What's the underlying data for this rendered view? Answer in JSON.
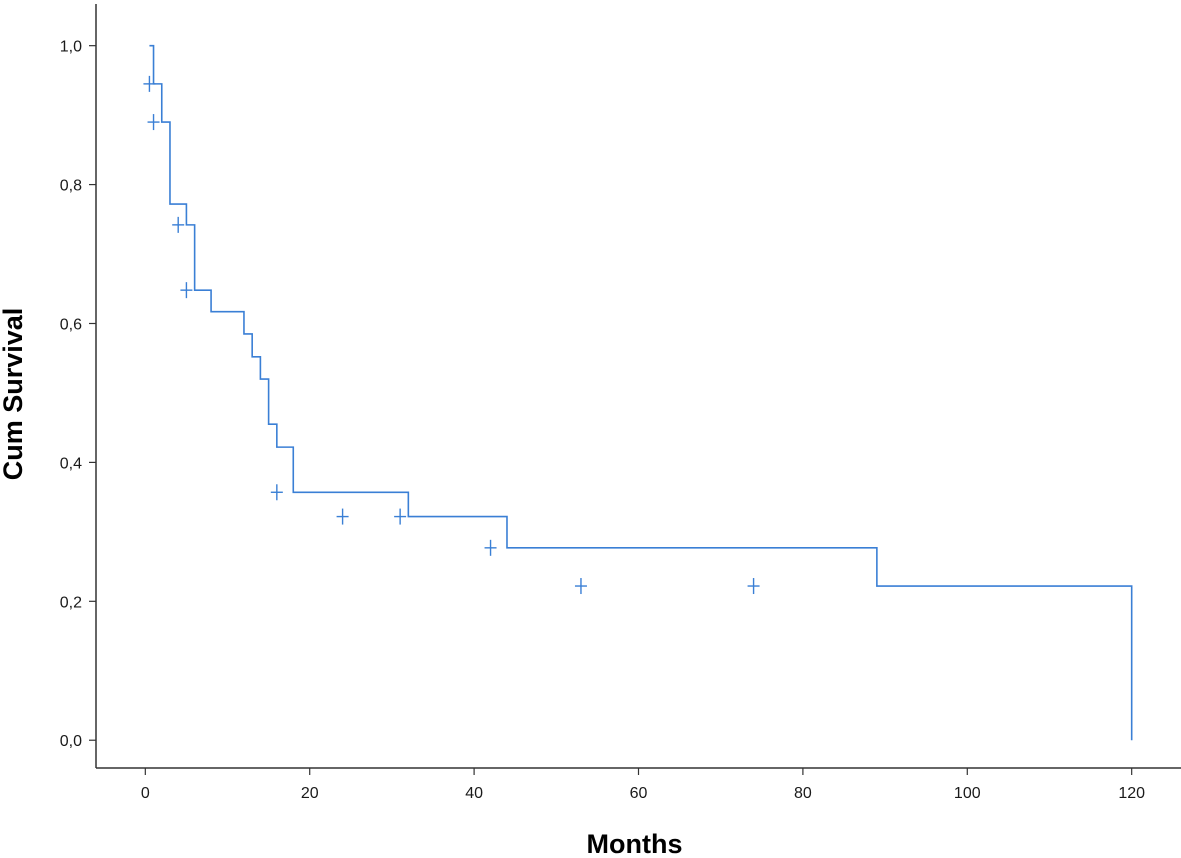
{
  "chart_data": {
    "type": "line",
    "xlabel": "Months",
    "ylabel": "Cum Survival",
    "xlim": [
      -6,
      126
    ],
    "ylim": [
      -0.04,
      1.06
    ],
    "x_ticks": [
      0,
      20,
      40,
      60,
      80,
      100,
      120
    ],
    "y_ticks": [
      0.0,
      0.2,
      0.4,
      0.6,
      0.8,
      1.0
    ],
    "x_tick_labels": [
      "0",
      "20",
      "40",
      "60",
      "80",
      "100",
      "120"
    ],
    "y_tick_labels": [
      "0,0",
      "0,2",
      "0,4",
      "0,6",
      "0,8",
      "1,0"
    ],
    "grid": false,
    "series_color": "#3a7fd5",
    "series": [
      {
        "x": [
          0.5,
          1,
          2,
          3,
          5,
          6,
          8,
          12,
          13,
          14,
          15,
          16,
          18,
          32,
          44,
          89,
          120
        ],
        "y": [
          1.0,
          0.945,
          0.89,
          0.772,
          0.742,
          0.648,
          0.617,
          0.585,
          0.552,
          0.52,
          0.455,
          0.422,
          0.357,
          0.322,
          0.277,
          0.222,
          0.111
        ],
        "end_y": 0.0,
        "censored_x": [
          0.5,
          1,
          4,
          5,
          16,
          24,
          31,
          42,
          53,
          74
        ],
        "censored_y": [
          0.945,
          0.89,
          0.742,
          0.648,
          0.357,
          0.322,
          0.322,
          0.277,
          0.222,
          0.222
        ]
      }
    ]
  }
}
